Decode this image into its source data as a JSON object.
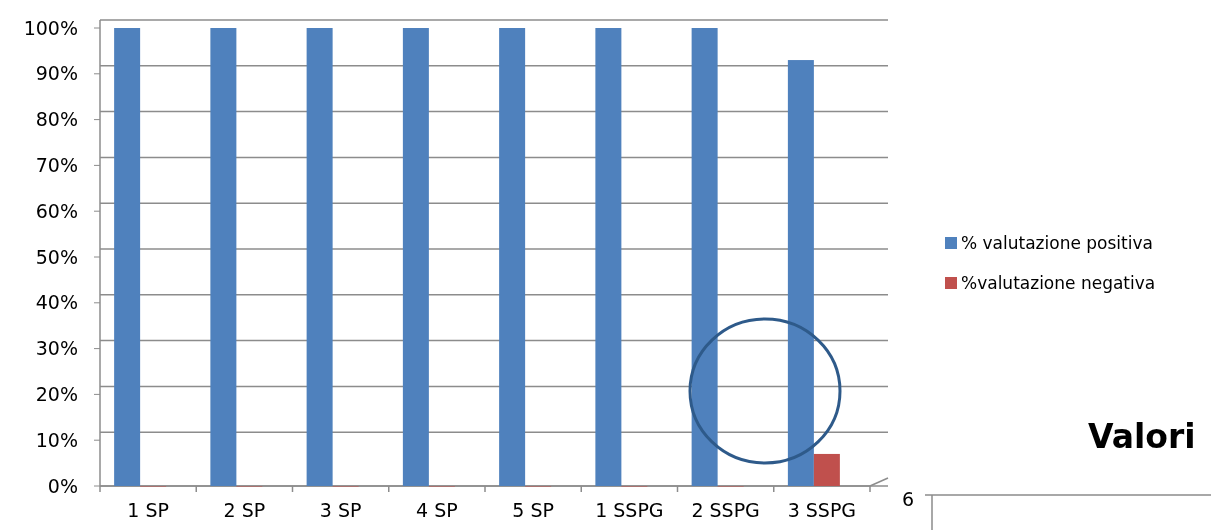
{
  "chart_data": {
    "type": "bar",
    "categories": [
      "1 SP",
      "2 SP",
      "3 SP",
      "4 SP",
      "5 SP",
      "1 SSPG",
      "2 SSPG",
      "3 SSPG"
    ],
    "series": [
      {
        "name": "% valutazione positiva",
        "color": "#4f81bd",
        "values": [
          100,
          100,
          100,
          100,
          100,
          100,
          100,
          93
        ]
      },
      {
        "name": "%valutazione negativa",
        "color": "#c0504d",
        "values": [
          0,
          0,
          0,
          0,
          0,
          0,
          0,
          7
        ]
      }
    ],
    "ylim": [
      0,
      100
    ],
    "yticks": [
      {
        "value": 0,
        "label": "0%"
      },
      {
        "value": 10,
        "label": "10%"
      },
      {
        "value": 20,
        "label": "20%"
      },
      {
        "value": 30,
        "label": "30%"
      },
      {
        "value": 40,
        "label": "40%"
      },
      {
        "value": 50,
        "label": "50%"
      },
      {
        "value": 60,
        "label": "60%"
      },
      {
        "value": 70,
        "label": "70%"
      },
      {
        "value": 80,
        "label": "80%"
      },
      {
        "value": 90,
        "label": "90%"
      },
      {
        "value": 100,
        "label": "100%"
      }
    ],
    "grid": "y",
    "legend": "right",
    "annotations": [
      "Valori",
      "6"
    ]
  }
}
